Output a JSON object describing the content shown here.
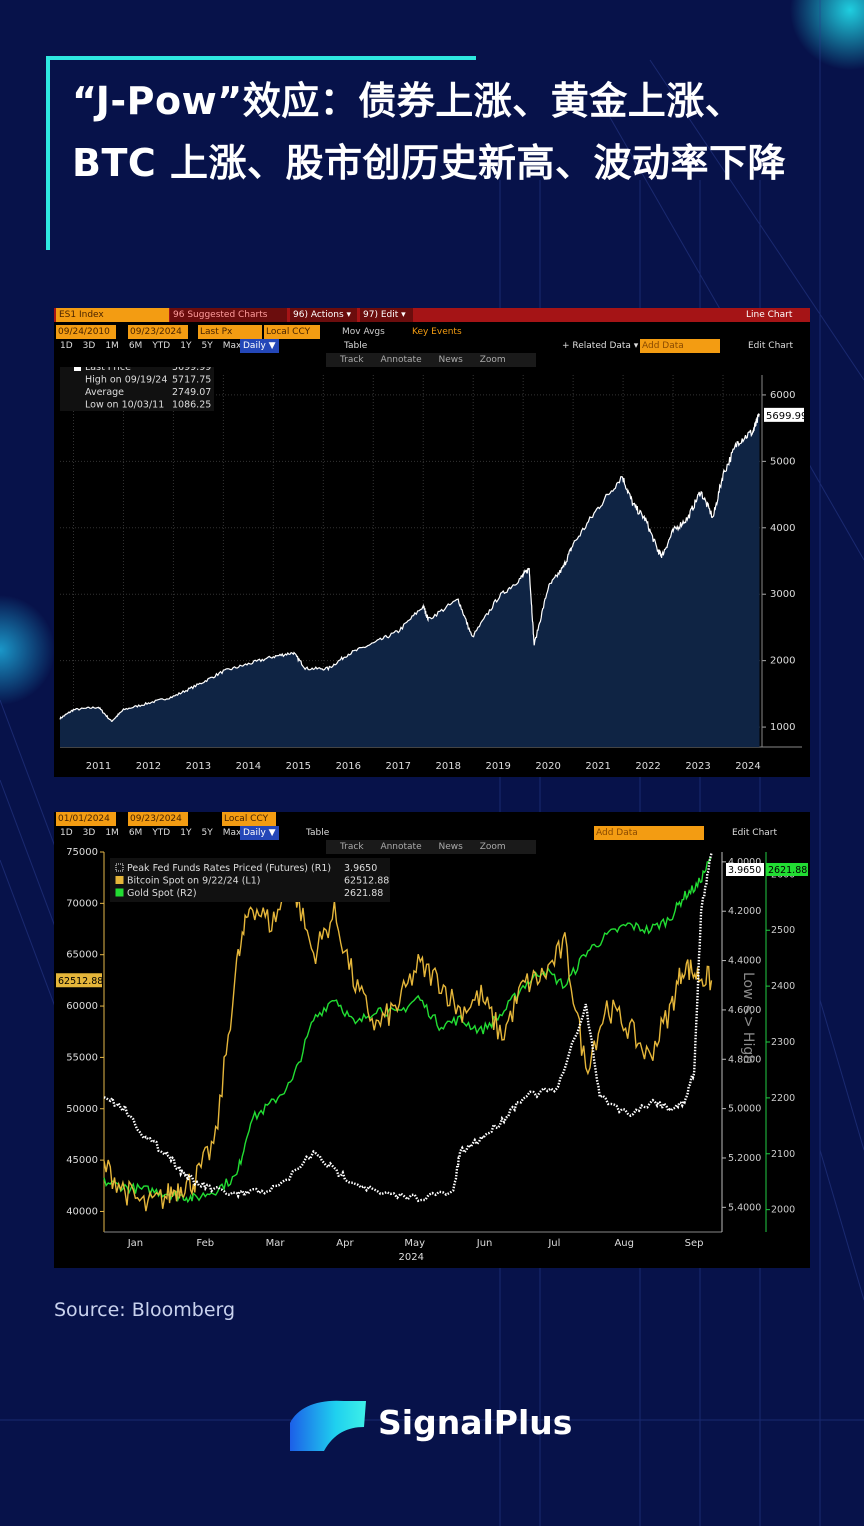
{
  "header": {
    "title": "“J-Pow”效应：债券上涨、黄金上涨、BTC 上涨、股市创历史新高、波动率下降"
  },
  "chart1": {
    "toolbar": {
      "ticker": "ES1 Index",
      "suggested": "96 Suggested Charts",
      "actions": "96) Actions ▾",
      "edit": "97) Edit ▾",
      "chart_type": "Line Chart",
      "date_from": "09/24/2010",
      "date_to": "09/23/2024",
      "field": "Last Px",
      "currency": "Local CCY",
      "mov_avgs": "Mov Avgs",
      "key_events": "Key Events",
      "periods": [
        "1D",
        "3D",
        "1M",
        "6M",
        "YTD",
        "1Y",
        "5Y",
        "Max"
      ],
      "frequency": "Daily ▼",
      "table": "Table",
      "related": "+ Related Data ▾",
      "add_data": "Add Data",
      "edit_chart": "Edit Chart",
      "track": "Track",
      "annotate": "Annotate",
      "news": "News",
      "zoom": "Zoom"
    },
    "legend": [
      {
        "label": "Last Price",
        "value": "5699.99"
      },
      {
        "label": "High on 09/19/24",
        "value": "5717.75"
      },
      {
        "label": "Average",
        "value": "2749.07"
      },
      {
        "label": "Low on 10/03/11",
        "value": "1086.25"
      }
    ],
    "last_label": "5699.99"
  },
  "chart2": {
    "toolbar": {
      "date_from": "01/01/2024",
      "date_to": "09/23/2024",
      "currency": "Local CCY",
      "periods": [
        "1D",
        "3D",
        "1M",
        "6M",
        "YTD",
        "1Y",
        "5Y",
        "Max"
      ],
      "frequency": "Daily ▼",
      "table": "Table",
      "add_data": "Add Data",
      "edit_chart": "Edit Chart",
      "track": "Track",
      "annotate": "Annotate",
      "news": "News",
      "zoom": "Zoom"
    },
    "legend": [
      {
        "label": "Peak Fed Funds Rates Priced (Futures) (R1)",
        "value": "3.9650"
      },
      {
        "label": "Bitcoin Spot on 9/22/24 (L1)",
        "value": "62512.88"
      },
      {
        "label": "Gold Spot (R2)",
        "value": "2621.88"
      }
    ],
    "left_label": "62512.88",
    "r1_label": "3.9650",
    "r2_label": "2621.88",
    "rotated_label": "Low <> High",
    "year_label": "2024"
  },
  "chart_data": [
    {
      "type": "area",
      "title": "",
      "xlabel": "",
      "ylabel": "",
      "x_ticks": [
        "2011",
        "2012",
        "2013",
        "2014",
        "2015",
        "2016",
        "2017",
        "2018",
        "2019",
        "2020",
        "2021",
        "2022",
        "2023",
        "2024"
      ],
      "y_ticks": [
        "1000",
        "2000",
        "3000",
        "4000",
        "5000",
        "6000"
      ],
      "ylim": [
        700,
        6300
      ],
      "grid": true,
      "series": [
        {
          "name": "ES1 Index",
          "x": [
            2010.73,
            2011.0,
            2011.5,
            2011.76,
            2012.0,
            2012.5,
            2013.0,
            2013.5,
            2014.0,
            2014.5,
            2015.0,
            2015.4,
            2015.65,
            2016.1,
            2016.5,
            2017.0,
            2017.5,
            2018.0,
            2018.1,
            2018.7,
            2018.98,
            2019.5,
            2019.95,
            2020.12,
            2020.22,
            2020.5,
            2020.8,
            2021.0,
            2021.5,
            2021.98,
            2022.2,
            2022.45,
            2022.7,
            2022.78,
            2023.0,
            2023.3,
            2023.55,
            2023.8,
            2024.0,
            2024.3,
            2024.6,
            2024.73
          ],
          "y": [
            1130,
            1260,
            1300,
            1086,
            1260,
            1360,
            1460,
            1640,
            1840,
            1950,
            2060,
            2120,
            1880,
            1880,
            2100,
            2260,
            2440,
            2820,
            2620,
            2920,
            2350,
            2950,
            3240,
            3390,
            2237,
            3100,
            3400,
            3750,
            4300,
            4780,
            4350,
            4120,
            3650,
            3580,
            3950,
            4150,
            4550,
            4150,
            4800,
            5300,
            5450,
            5700
          ]
        }
      ]
    },
    {
      "type": "line",
      "title": "",
      "xlabel": "2024",
      "x_ticks": [
        "Jan",
        "Feb",
        "Mar",
        "Apr",
        "May",
        "Jun",
        "Jul",
        "Aug",
        "Sep"
      ],
      "y_left_ticks": [
        "40000",
        "45000",
        "50000",
        "55000",
        "60000",
        "65000",
        "70000",
        "75000"
      ],
      "y_left_lim": [
        38000,
        75000
      ],
      "y_right1_ticks": [
        "4.0000",
        "4.2000",
        "4.4000",
        "4.6000",
        "4.8000",
        "5.0000",
        "5.2000",
        "5.4000"
      ],
      "y_right1_lim": [
        3.96,
        5.5
      ],
      "y_right1_inverted": true,
      "y_right2_ticks": [
        "2000",
        "2100",
        "2200",
        "2300",
        "2400",
        "2500",
        "2600"
      ],
      "y_right2_lim": [
        1960,
        2640
      ],
      "series": [
        {
          "name": "Peak Fed Funds Rates Priced (Futures) (R1)",
          "axis": "R1",
          "x": [
            0,
            0.3,
            0.6,
            0.9,
            1.1,
            1.3,
            1.6,
            1.9,
            2.1,
            2.5,
            3.0,
            3.3,
            3.6,
            4.0,
            4.5,
            5.0,
            5.1,
            5.4,
            5.7,
            6.0,
            6.5,
            6.9,
            7.1,
            7.5,
            7.9,
            8.1,
            8.3,
            8.45,
            8.55,
            8.7
          ],
          "y": [
            4.95,
            5.0,
            5.12,
            5.18,
            5.25,
            5.3,
            5.33,
            5.35,
            5.34,
            5.32,
            5.18,
            5.25,
            5.3,
            5.35,
            5.36,
            5.34,
            5.18,
            5.12,
            5.05,
            4.95,
            4.92,
            4.58,
            4.95,
            5.02,
            4.97,
            5.0,
            4.98,
            4.85,
            4.2,
            3.965
          ]
        },
        {
          "name": "Bitcoin Spot on 9/22/24 (L1)",
          "axis": "L1",
          "x": [
            0,
            0.3,
            0.6,
            0.9,
            1.1,
            1.3,
            1.6,
            1.9,
            2.1,
            2.4,
            2.7,
            3.0,
            3.3,
            3.6,
            3.9,
            4.2,
            4.5,
            4.8,
            5.1,
            5.4,
            5.7,
            6.0,
            6.3,
            6.6,
            6.9,
            7.2,
            7.5,
            7.8,
            8.1,
            8.3,
            8.5,
            8.7
          ],
          "y": [
            44500,
            42000,
            40500,
            41500,
            42500,
            43000,
            47000,
            64000,
            70000,
            68000,
            72000,
            65000,
            69000,
            62000,
            58000,
            60000,
            64000,
            62500,
            59500,
            61000,
            57000,
            62000,
            63000,
            66000,
            54000,
            60000,
            58000,
            55000,
            59500,
            64000,
            63000,
            62500
          ]
        },
        {
          "name": "Gold Spot (R2)",
          "axis": "R2",
          "x": [
            0,
            0.3,
            0.6,
            0.9,
            1.1,
            1.3,
            1.6,
            1.9,
            2.1,
            2.4,
            2.7,
            3.0,
            3.3,
            3.6,
            3.9,
            4.2,
            4.5,
            4.8,
            5.1,
            5.4,
            5.7,
            6.0,
            6.3,
            6.6,
            6.9,
            7.2,
            7.5,
            7.8,
            8.1,
            8.3,
            8.5,
            8.7
          ],
          "y": [
            2050,
            2040,
            2035,
            2030,
            2025,
            2020,
            2035,
            2060,
            2160,
            2190,
            2230,
            2340,
            2380,
            2330,
            2360,
            2350,
            2380,
            2330,
            2340,
            2320,
            2350,
            2400,
            2430,
            2400,
            2460,
            2490,
            2510,
            2500,
            2520,
            2560,
            2580,
            2630
          ]
        }
      ]
    }
  ],
  "footer": {
    "source": "Source: Bloomberg",
    "brand": "SignalPlus"
  }
}
